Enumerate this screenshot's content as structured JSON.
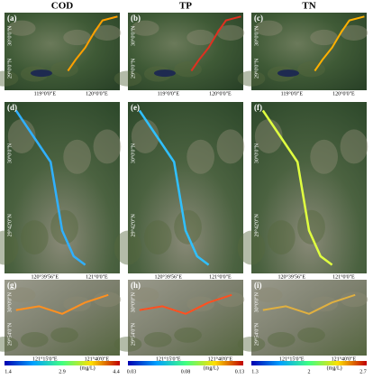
{
  "columns": [
    {
      "title": "COD",
      "colorbar": {
        "ticks": [
          1.4,
          2.9,
          4.4
        ],
        "unit": "(mg/L)"
      }
    },
    {
      "title": "TP",
      "colorbar": {
        "ticks": [
          0.03,
          0.08,
          0.13
        ],
        "unit": "(mg/L)"
      }
    },
    {
      "title": "TN",
      "colorbar": {
        "ticks": [
          1.3,
          2,
          2.7
        ],
        "unit": "(mg/L)"
      }
    }
  ],
  "panels": [
    {
      "label": "(a)",
      "lat": [
        "30°0'0\"N",
        "29°0'0\"N"
      ],
      "lon": [
        "119°0'0\"E",
        "120°0'0\"E"
      ]
    },
    {
      "label": "(b)",
      "lat": [
        "30°0'0\"N",
        "29°0'0\"N"
      ],
      "lon": [
        "119°0'0\"E",
        "120°0'0\"E"
      ]
    },
    {
      "label": "(c)",
      "lat": [
        "30°0'0\"N",
        "29°0'0\"N"
      ],
      "lon": [
        "119°0'0\"E",
        "120°0'0\"E"
      ]
    },
    {
      "label": "(d)",
      "lat": [
        "30°0'0\"N",
        "29°42'0\"N"
      ],
      "lon": [
        "120°39'56\"E",
        "121°0'0\"E"
      ]
    },
    {
      "label": "(e)",
      "lat": [
        "30°0'0\"N",
        "29°42'0\"N"
      ],
      "lon": [
        "120°39'56\"E",
        "121°0'0\"E"
      ]
    },
    {
      "label": "(f)",
      "lat": [
        "30°0'0\"N",
        "29°42'0\"N"
      ],
      "lon": [
        "120°39'56\"E",
        "121°0'0\"E"
      ]
    },
    {
      "label": "(g)",
      "lat": [
        "30°0'0\"N",
        "29°54'0\"N"
      ],
      "lon": [
        "121°15'0\"E",
        "121°40'0\"E"
      ]
    },
    {
      "label": "(h)",
      "lat": [
        "30°0'0\"N",
        "29°54'0\"N"
      ],
      "lon": [
        "121°15'0\"E",
        "121°40'0\"E"
      ]
    },
    {
      "label": "(i)",
      "lat": [
        "30°0'0\"N",
        "29°54'0\"N"
      ],
      "lon": [
        "121°15'0\"E",
        "121°40'0\"E"
      ]
    }
  ]
}
